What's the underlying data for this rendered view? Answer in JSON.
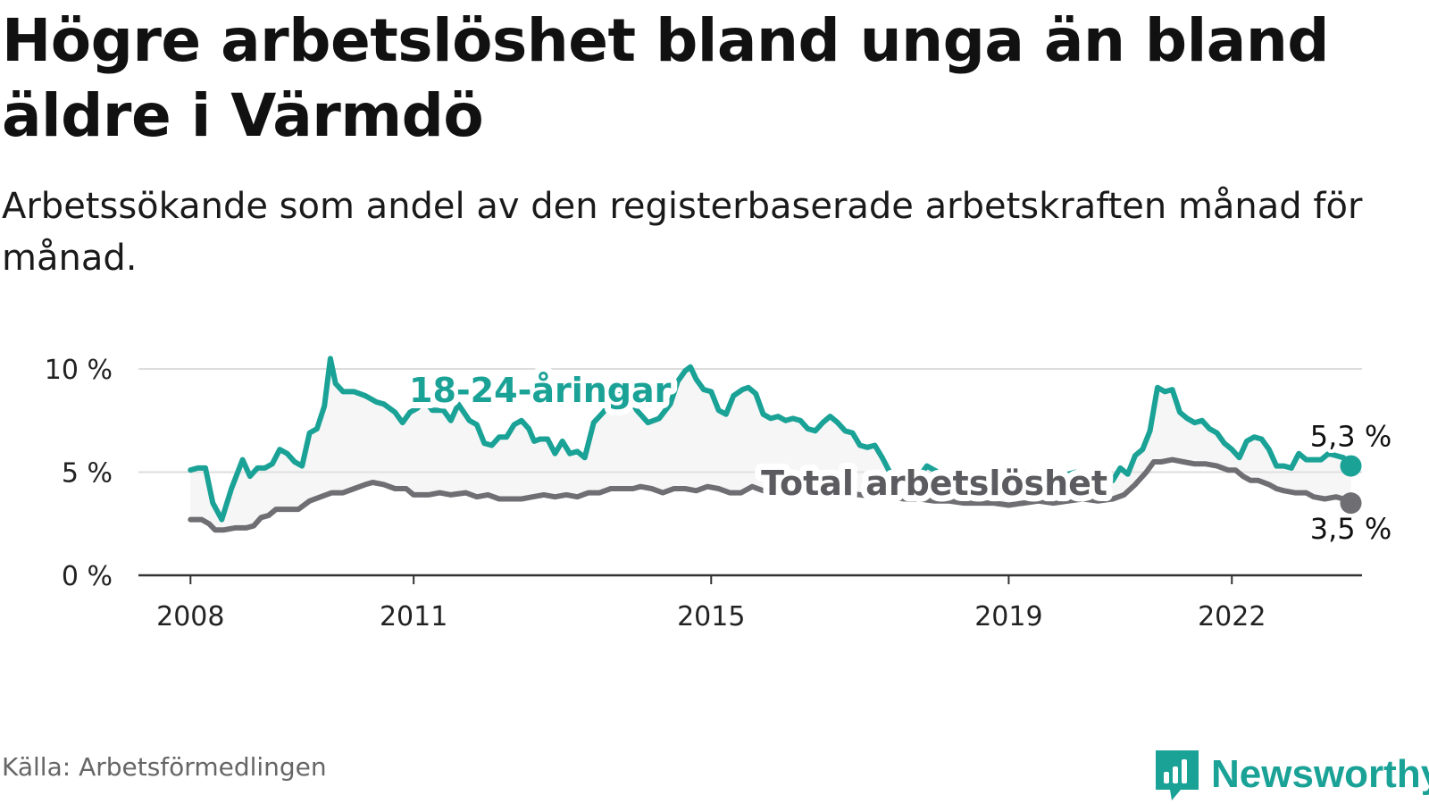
{
  "title": "Högre arbetslöshet bland unga än bland äldre i Värmdö",
  "subtitle": "Arbetssökande som andel av den registerbaserade arbetskraften månad för månad.",
  "source": "Källa: Arbetsförmedlingen",
  "brand": {
    "name": "Newsworthy",
    "icon": "newsworthy-bar-chart-icon"
  },
  "colors": {
    "youth": "#1aa297",
    "total": "#6e6e73",
    "band": "#e6e6e6",
    "grid": "#dddddd",
    "axis": "#333333"
  },
  "chart_data": {
    "type": "line",
    "title": "Högre arbetslöshet bland unga än bland äldre i Värmdö",
    "xlabel": "",
    "ylabel": "",
    "x_ticks": [
      "2008",
      "2011",
      "2015",
      "2019",
      "2022"
    ],
    "x_tick_values": [
      2008,
      2011,
      2015,
      2019,
      2022
    ],
    "y_ticks": [
      "0 %",
      "5 %",
      "10 %"
    ],
    "y_tick_values": [
      0,
      5,
      10
    ],
    "ylim": [
      0,
      10
    ],
    "xlim": [
      2007.3,
      2023.75
    ],
    "grid": true,
    "series": [
      {
        "name": "18-24-åringar",
        "label": "18-24-åringar",
        "end_label": "5,3 %",
        "points": [
          [
            2008.0,
            5.1
          ],
          [
            2008.1,
            5.2
          ],
          [
            2008.2,
            5.2
          ],
          [
            2008.3,
            3.5
          ],
          [
            2008.42,
            2.7
          ],
          [
            2008.55,
            4.2
          ],
          [
            2008.7,
            5.6
          ],
          [
            2008.8,
            4.8
          ],
          [
            2008.9,
            5.2
          ],
          [
            2009.0,
            5.2
          ],
          [
            2009.1,
            5.4
          ],
          [
            2009.2,
            6.1
          ],
          [
            2009.3,
            5.9
          ],
          [
            2009.4,
            5.5
          ],
          [
            2009.5,
            5.3
          ],
          [
            2009.6,
            6.9
          ],
          [
            2009.7,
            7.1
          ],
          [
            2009.8,
            8.2
          ],
          [
            2009.88,
            10.5
          ],
          [
            2009.95,
            9.3
          ],
          [
            2010.05,
            8.9
          ],
          [
            2010.2,
            8.9
          ],
          [
            2010.35,
            8.7
          ],
          [
            2010.5,
            8.4
          ],
          [
            2010.6,
            8.3
          ],
          [
            2010.75,
            7.9
          ],
          [
            2010.85,
            7.4
          ],
          [
            2010.95,
            7.9
          ],
          [
            2011.05,
            8.1
          ],
          [
            2011.15,
            8.5
          ],
          [
            2011.25,
            8.0
          ],
          [
            2011.4,
            8.0
          ],
          [
            2011.5,
            7.5
          ],
          [
            2011.6,
            8.3
          ],
          [
            2011.75,
            7.5
          ],
          [
            2011.85,
            7.3
          ],
          [
            2011.95,
            6.4
          ],
          [
            2012.05,
            6.3
          ],
          [
            2012.15,
            6.7
          ],
          [
            2012.25,
            6.7
          ],
          [
            2012.35,
            7.3
          ],
          [
            2012.45,
            7.5
          ],
          [
            2012.55,
            7.1
          ],
          [
            2012.62,
            6.5
          ],
          [
            2012.7,
            6.6
          ],
          [
            2012.8,
            6.6
          ],
          [
            2012.9,
            5.9
          ],
          [
            2013.0,
            6.5
          ],
          [
            2013.1,
            5.9
          ],
          [
            2013.2,
            6.0
          ],
          [
            2013.3,
            5.7
          ],
          [
            2013.42,
            7.4
          ],
          [
            2013.55,
            7.9
          ],
          [
            2013.7,
            8.6
          ],
          [
            2013.85,
            8.9
          ],
          [
            2014.0,
            8.0
          ],
          [
            2014.15,
            7.4
          ],
          [
            2014.3,
            7.6
          ],
          [
            2014.45,
            8.3
          ],
          [
            2014.55,
            9.4
          ],
          [
            2014.65,
            9.9
          ],
          [
            2014.72,
            10.1
          ],
          [
            2014.8,
            9.5
          ],
          [
            2014.9,
            9.0
          ],
          [
            2015.0,
            8.9
          ],
          [
            2015.1,
            8.0
          ],
          [
            2015.2,
            7.8
          ],
          [
            2015.3,
            8.7
          ],
          [
            2015.42,
            9.0
          ],
          [
            2015.5,
            9.1
          ],
          [
            2015.6,
            8.8
          ],
          [
            2015.7,
            7.8
          ],
          [
            2015.8,
            7.6
          ],
          [
            2015.9,
            7.7
          ],
          [
            2016.0,
            7.5
          ],
          [
            2016.1,
            7.6
          ],
          [
            2016.2,
            7.5
          ],
          [
            2016.3,
            7.1
          ],
          [
            2016.4,
            7.0
          ],
          [
            2016.5,
            7.4
          ],
          [
            2016.6,
            7.7
          ],
          [
            2016.7,
            7.4
          ],
          [
            2016.8,
            7.0
          ],
          [
            2016.9,
            6.9
          ],
          [
            2017.0,
            6.3
          ],
          [
            2017.1,
            6.2
          ],
          [
            2017.2,
            6.3
          ],
          [
            2017.3,
            5.7
          ],
          [
            2017.4,
            5.0
          ],
          [
            2017.5,
            4.8
          ],
          [
            2017.6,
            4.9
          ],
          [
            2017.7,
            5.0
          ],
          [
            2017.8,
            4.8
          ],
          [
            2017.9,
            5.3
          ],
          [
            2018.0,
            5.1
          ],
          [
            2018.1,
            4.9
          ],
          [
            2018.2,
            4.6
          ],
          [
            2018.3,
            4.6
          ],
          [
            2018.4,
            4.9
          ],
          [
            2018.5,
            4.7
          ],
          [
            2018.6,
            4.8
          ],
          [
            2018.7,
            4.7
          ],
          [
            2018.8,
            5.0
          ],
          [
            2018.9,
            4.6
          ],
          [
            2019.0,
            4.8
          ],
          [
            2019.1,
            4.6
          ],
          [
            2019.2,
            4.7
          ],
          [
            2019.3,
            4.8
          ],
          [
            2019.4,
            4.9
          ],
          [
            2019.5,
            4.7
          ],
          [
            2019.6,
            4.6
          ],
          [
            2019.7,
            4.8
          ],
          [
            2019.8,
            4.9
          ],
          [
            2019.9,
            5.0
          ],
          [
            2020.0,
            4.8
          ],
          [
            2020.1,
            4.6
          ],
          [
            2020.2,
            4.5
          ],
          [
            2020.3,
            4.7
          ],
          [
            2020.4,
            4.6
          ],
          [
            2020.5,
            5.2
          ],
          [
            2020.6,
            4.9
          ],
          [
            2020.7,
            5.8
          ],
          [
            2020.8,
            6.1
          ],
          [
            2020.9,
            7.0
          ],
          [
            2021.0,
            9.1
          ],
          [
            2021.1,
            8.9
          ],
          [
            2021.2,
            9.0
          ],
          [
            2021.3,
            7.9
          ],
          [
            2021.4,
            7.6
          ],
          [
            2021.5,
            7.4
          ],
          [
            2021.6,
            7.5
          ],
          [
            2021.7,
            7.1
          ],
          [
            2021.8,
            6.9
          ],
          [
            2021.9,
            6.4
          ],
          [
            2022.0,
            6.1
          ],
          [
            2022.1,
            5.7
          ],
          [
            2022.2,
            6.5
          ],
          [
            2022.3,
            6.7
          ],
          [
            2022.4,
            6.6
          ],
          [
            2022.5,
            6.1
          ],
          [
            2022.6,
            5.3
          ],
          [
            2022.7,
            5.3
          ],
          [
            2022.8,
            5.2
          ],
          [
            2022.9,
            5.9
          ],
          [
            2023.0,
            5.6
          ],
          [
            2023.1,
            5.6
          ],
          [
            2023.2,
            5.6
          ],
          [
            2023.3,
            5.9
          ],
          [
            2023.4,
            5.8
          ],
          [
            2023.5,
            5.7
          ],
          [
            2023.6,
            5.3
          ]
        ]
      },
      {
        "name": "Total arbetslöshet",
        "label": "Total arbetslöshet",
        "end_label": "3,5 %",
        "points": [
          [
            2008.0,
            2.7
          ],
          [
            2008.15,
            2.7
          ],
          [
            2008.25,
            2.5
          ],
          [
            2008.33,
            2.2
          ],
          [
            2008.45,
            2.2
          ],
          [
            2008.6,
            2.3
          ],
          [
            2008.75,
            2.3
          ],
          [
            2008.85,
            2.4
          ],
          [
            2008.95,
            2.8
          ],
          [
            2009.05,
            2.9
          ],
          [
            2009.15,
            3.2
          ],
          [
            2009.3,
            3.2
          ],
          [
            2009.45,
            3.2
          ],
          [
            2009.6,
            3.6
          ],
          [
            2009.75,
            3.8
          ],
          [
            2009.9,
            4.0
          ],
          [
            2010.05,
            4.0
          ],
          [
            2010.2,
            4.2
          ],
          [
            2010.35,
            4.4
          ],
          [
            2010.45,
            4.5
          ],
          [
            2010.6,
            4.4
          ],
          [
            2010.75,
            4.2
          ],
          [
            2010.9,
            4.2
          ],
          [
            2011.0,
            3.9
          ],
          [
            2011.2,
            3.9
          ],
          [
            2011.35,
            4.0
          ],
          [
            2011.5,
            3.9
          ],
          [
            2011.7,
            4.0
          ],
          [
            2011.85,
            3.8
          ],
          [
            2012.0,
            3.9
          ],
          [
            2012.15,
            3.7
          ],
          [
            2012.3,
            3.7
          ],
          [
            2012.45,
            3.7
          ],
          [
            2012.6,
            3.8
          ],
          [
            2012.75,
            3.9
          ],
          [
            2012.9,
            3.8
          ],
          [
            2013.05,
            3.9
          ],
          [
            2013.2,
            3.8
          ],
          [
            2013.35,
            4.0
          ],
          [
            2013.5,
            4.0
          ],
          [
            2013.65,
            4.2
          ],
          [
            2013.8,
            4.2
          ],
          [
            2013.95,
            4.2
          ],
          [
            2014.05,
            4.3
          ],
          [
            2014.2,
            4.2
          ],
          [
            2014.35,
            4.0
          ],
          [
            2014.5,
            4.2
          ],
          [
            2014.65,
            4.2
          ],
          [
            2014.8,
            4.1
          ],
          [
            2014.95,
            4.3
          ],
          [
            2015.1,
            4.2
          ],
          [
            2015.25,
            4.0
          ],
          [
            2015.4,
            4.0
          ],
          [
            2015.55,
            4.3
          ],
          [
            2015.7,
            4.1
          ],
          [
            2015.85,
            4.2
          ],
          [
            2016.0,
            4.1
          ],
          [
            2016.15,
            4.2
          ],
          [
            2016.3,
            3.9
          ],
          [
            2016.45,
            4.2
          ],
          [
            2016.6,
            4.0
          ],
          [
            2016.8,
            4.0
          ],
          [
            2017.0,
            3.9
          ],
          [
            2017.2,
            3.8
          ],
          [
            2017.4,
            3.8
          ],
          [
            2017.6,
            3.7
          ],
          [
            2017.8,
            3.7
          ],
          [
            2018.0,
            3.6
          ],
          [
            2018.2,
            3.6
          ],
          [
            2018.4,
            3.5
          ],
          [
            2018.6,
            3.5
          ],
          [
            2018.8,
            3.5
          ],
          [
            2019.0,
            3.4
          ],
          [
            2019.2,
            3.5
          ],
          [
            2019.4,
            3.6
          ],
          [
            2019.6,
            3.5
          ],
          [
            2019.8,
            3.6
          ],
          [
            2020.0,
            3.7
          ],
          [
            2020.2,
            3.6
          ],
          [
            2020.4,
            3.7
          ],
          [
            2020.55,
            3.9
          ],
          [
            2020.7,
            4.4
          ],
          [
            2020.85,
            5.0
          ],
          [
            2020.95,
            5.5
          ],
          [
            2021.05,
            5.5
          ],
          [
            2021.2,
            5.6
          ],
          [
            2021.35,
            5.5
          ],
          [
            2021.5,
            5.4
          ],
          [
            2021.65,
            5.4
          ],
          [
            2021.8,
            5.3
          ],
          [
            2021.95,
            5.1
          ],
          [
            2022.05,
            5.1
          ],
          [
            2022.15,
            4.8
          ],
          [
            2022.25,
            4.6
          ],
          [
            2022.35,
            4.6
          ],
          [
            2022.5,
            4.4
          ],
          [
            2022.6,
            4.2
          ],
          [
            2022.7,
            4.1
          ],
          [
            2022.85,
            4.0
          ],
          [
            2023.0,
            4.0
          ],
          [
            2023.1,
            3.8
          ],
          [
            2023.25,
            3.7
          ],
          [
            2023.4,
            3.8
          ],
          [
            2023.5,
            3.7
          ],
          [
            2023.6,
            3.5
          ]
        ]
      }
    ],
    "annotations": [
      {
        "text": "18-24-åringar",
        "series": "18-24-åringar",
        "anchor": [
          2012.7,
          8.4
        ]
      },
      {
        "text": "Total arbetslöshet",
        "series": "Total arbetslöshet",
        "anchor": [
          2018.0,
          3.9
        ]
      }
    ]
  }
}
